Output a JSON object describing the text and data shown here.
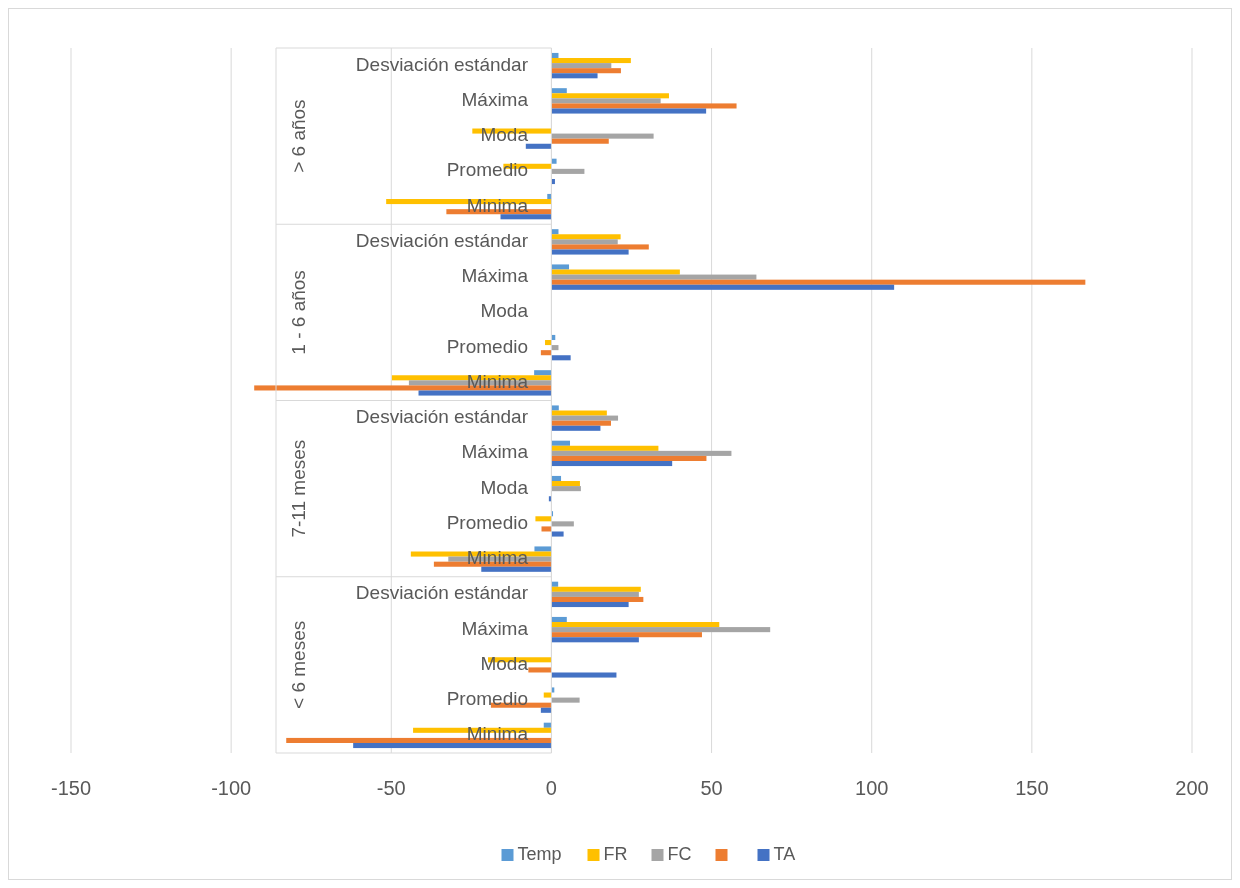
{
  "chart_data": {
    "type": "bar",
    "orientation": "horizontal",
    "categories": [
      "Desviación estándar",
      "Máxima",
      "Moda",
      "Promedio",
      "Minima",
      "Desviación estándar",
      "Máxima",
      "Moda",
      "Promedio",
      "Minima",
      "Desviación estándar",
      "Máxima",
      "Moda",
      "Promedio",
      "Minima",
      "Desviación estándar",
      "Máxima",
      "Moda",
      "Promedio",
      "Minima"
    ],
    "annotations": [
      "> 6 años",
      "1 - 6 años",
      "7-11 meses",
      "< 6 meses"
    ],
    "series": [
      {
        "name": "Temp",
        "color": "#5b9bd5",
        "values": [
          2.2,
          4.8,
          null,
          1.6,
          -1.3,
          2.2,
          5.5,
          null,
          1.2,
          -5.4,
          2.3,
          5.8,
          3,
          0.5,
          -5.3,
          2.1,
          4.8,
          null,
          0.9,
          -2.4
        ]
      },
      {
        "name": "FR",
        "color": "#ffc000",
        "values": [
          24.8,
          36.7,
          -24.7,
          -15,
          -51.6,
          21.6,
          40.1,
          null,
          -2,
          -49.8,
          17.3,
          33.4,
          8.9,
          -5,
          -43.9,
          27.9,
          52.4,
          -19.8,
          -2.4,
          -43.2
        ]
      },
      {
        "name": "FC",
        "color": "#a5a5a5",
        "values": [
          18.7,
          34.1,
          31.9,
          10.3,
          null,
          20.7,
          64,
          null,
          2.2,
          -44.5,
          20.8,
          56.2,
          9.2,
          7,
          -32.2,
          27.3,
          68.3,
          null,
          8.8,
          null
        ]
      },
      {
        "color": "#ed7d31",
        "values": [
          21.7,
          57.8,
          17.9,
          null,
          -32.8,
          30.4,
          166.7,
          null,
          -3.3,
          -92.8,
          18.6,
          48.4,
          null,
          -3.1,
          -36.7,
          28.7,
          47,
          -7.2,
          -18.9,
          -82.8
        ]
      },
      {
        "name": "TA",
        "color": "#4472c4",
        "values": [
          14.4,
          48.3,
          -8,
          1.1,
          -15.9,
          24.1,
          107,
          null,
          6,
          -41.5,
          15.3,
          37.7,
          -0.8,
          3.8,
          -21.9,
          24.1,
          27.3,
          20.3,
          -3.3,
          -61.9
        ]
      }
    ],
    "xlim": [
      -150,
      200
    ],
    "xticks": [
      -150,
      -100,
      -50,
      0,
      50,
      100,
      150,
      200
    ],
    "grid": "x",
    "legend": "bottom"
  }
}
